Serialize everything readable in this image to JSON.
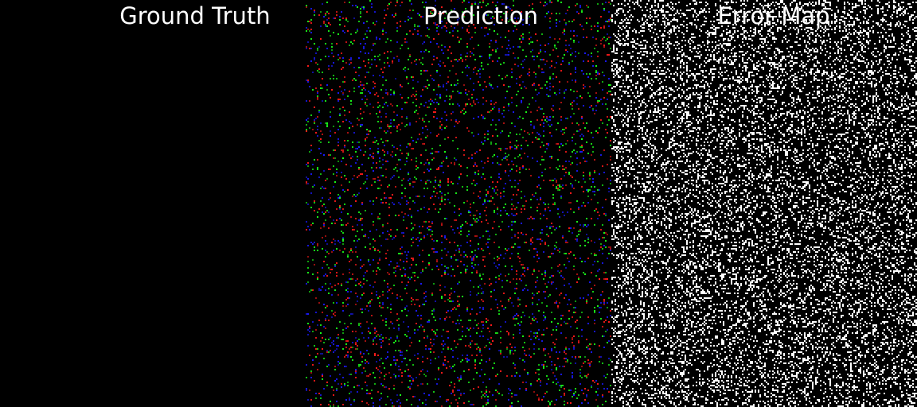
{
  "panels": [
    {
      "id": "ground-truth",
      "title": "Ground Truth",
      "content": "black"
    },
    {
      "id": "prediction",
      "title": "Prediction",
      "content": "rgb-noise"
    },
    {
      "id": "error-map",
      "title": "Error Map",
      "content": "white-noise"
    }
  ],
  "colors": {
    "background": "#000000",
    "title_text": "#ffffff",
    "noise_red": "#ff1a1a",
    "noise_green": "#1aff1a",
    "noise_blue": "#1a1aff",
    "noise_white": "#ffffff"
  }
}
